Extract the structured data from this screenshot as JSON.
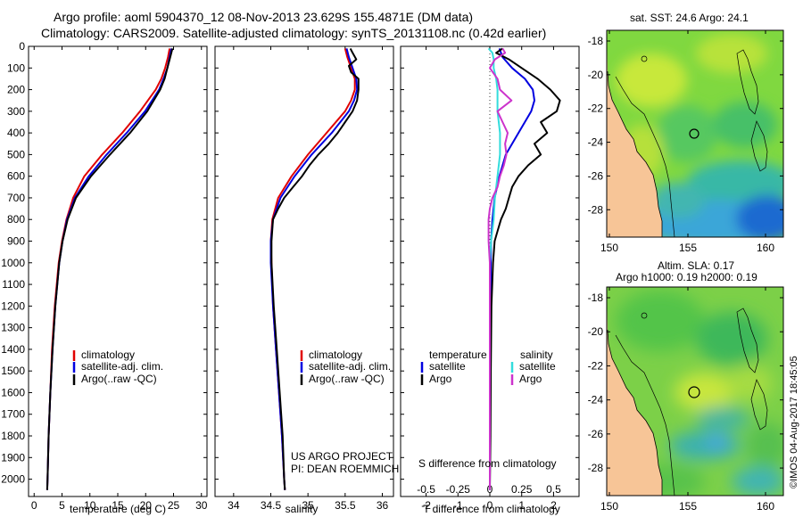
{
  "header": {
    "title_line1": "Argo profile: aoml 5904370_12 08-Nov-2013 23.629S 155.4871E (DM data)",
    "title_line2": "Climatology: CARS2009. Satellite-adjusted climatology: synTS_20131108.nc (0.42d earlier)"
  },
  "colors": {
    "climatology": "#e00000",
    "satellite": "#0000e0",
    "argo": "#000000",
    "salinity_satellite": "#33dddd",
    "salinity_argo": "#cc33cc"
  },
  "chart_data": [
    {
      "type": "line",
      "panel": "temperature",
      "xlabel": "temperature (deg C)",
      "xlim": [
        -1,
        31
      ],
      "xticks": [
        0,
        5,
        10,
        15,
        20,
        25,
        30
      ],
      "ylim": [
        0,
        2080
      ],
      "yticks": [
        0,
        100,
        200,
        300,
        400,
        500,
        600,
        700,
        800,
        900,
        1000,
        1100,
        1200,
        1300,
        1400,
        1500,
        1600,
        1700,
        1800,
        1900,
        2000
      ],
      "legend": [
        "climatology",
        "satellite-adj. clim.",
        "Argo(..raw -QC)"
      ],
      "series": [
        {
          "name": "climatology",
          "depth": [
            10,
            50,
            100,
            150,
            200,
            300,
            400,
            500,
            600,
            700,
            800,
            900,
            1000,
            1200,
            1400,
            1600,
            1800,
            2000,
            2050
          ],
          "values": [
            24.3,
            24.0,
            23.5,
            22.8,
            21.8,
            19.0,
            15.8,
            12.2,
            9.0,
            7.0,
            5.8,
            5.0,
            4.4,
            3.7,
            3.2,
            2.9,
            2.6,
            2.4,
            2.35
          ]
        },
        {
          "name": "satellite-adj. clim.",
          "depth": [
            10,
            50,
            100,
            150,
            200,
            300,
            400,
            500,
            600,
            700,
            800,
            900,
            1000,
            1200,
            1400,
            1600,
            1800,
            2000,
            2050
          ],
          "values": [
            24.6,
            24.3,
            23.9,
            23.2,
            22.4,
            19.9,
            16.6,
            13.0,
            9.8,
            7.3,
            5.9,
            5.1,
            4.5,
            3.8,
            3.3,
            2.9,
            2.6,
            2.4,
            2.35
          ]
        },
        {
          "name": "Argo(..raw -QC)",
          "depth": [
            10,
            50,
            100,
            150,
            200,
            300,
            400,
            500,
            600,
            700,
            800,
            900,
            1000,
            1200,
            1400,
            1600,
            1800,
            2000,
            2050
          ],
          "values": [
            24.8,
            24.4,
            23.9,
            23.4,
            22.6,
            20.3,
            17.2,
            13.6,
            10.2,
            7.5,
            6.0,
            5.1,
            4.5,
            3.8,
            3.3,
            2.9,
            2.6,
            2.4,
            2.35
          ]
        }
      ]
    },
    {
      "type": "line",
      "panel": "salinity",
      "xlabel": "salinity",
      "xlim": [
        33.75,
        36.15
      ],
      "xticks": [
        34,
        34.5,
        35,
        35.5,
        36
      ],
      "ylim": [
        0,
        2080
      ],
      "legend": [
        "climatology",
        "satellite-adj. clim.",
        "Argo(..raw -QC)"
      ],
      "annotation": [
        "US ARGO PROJECT",
        "PI: DEAN ROEMMICH"
      ],
      "series": [
        {
          "name": "climatology",
          "depth": [
            10,
            50,
            100,
            150,
            200,
            250,
            300,
            400,
            500,
            600,
            700,
            800,
            900,
            1000,
            1200,
            1400,
            1600,
            1800,
            2000,
            2050
          ],
          "values": [
            35.5,
            35.53,
            35.58,
            35.63,
            35.63,
            35.58,
            35.5,
            35.25,
            35.0,
            34.78,
            34.6,
            34.52,
            34.5,
            34.51,
            34.53,
            34.57,
            34.61,
            34.65,
            34.68,
            34.69
          ]
        },
        {
          "name": "satellite-adj. clim.",
          "depth": [
            10,
            50,
            100,
            150,
            200,
            250,
            300,
            400,
            500,
            600,
            700,
            800,
            900,
            1000,
            1200,
            1400,
            1600,
            1800,
            2000,
            2050
          ],
          "values": [
            35.52,
            35.55,
            35.6,
            35.65,
            35.66,
            35.62,
            35.55,
            35.32,
            35.05,
            34.82,
            34.63,
            34.53,
            34.5,
            34.5,
            34.53,
            34.57,
            34.61,
            34.65,
            34.68,
            34.69
          ]
        },
        {
          "name": "Argo(..raw -QC)",
          "depth": [
            10,
            30,
            60,
            90,
            120,
            150,
            200,
            250,
            300,
            350,
            400,
            450,
            500,
            550,
            600,
            650,
            700,
            750,
            800,
            900,
            1000,
            1200,
            1400,
            1600,
            1800,
            2000,
            2050
          ],
          "values": [
            35.57,
            35.6,
            35.65,
            35.55,
            35.58,
            35.68,
            35.68,
            35.66,
            35.6,
            35.5,
            35.4,
            35.28,
            35.14,
            35.02,
            34.92,
            34.8,
            34.68,
            34.6,
            34.53,
            34.51,
            34.51,
            34.54,
            34.58,
            34.62,
            34.66,
            34.68,
            34.69
          ]
        }
      ]
    },
    {
      "type": "line",
      "panel": "difference",
      "xlabel": "T difference from climatology",
      "top_xlabel": "S difference from climatology",
      "xlim": [
        -2.8,
        2.8
      ],
      "xticks": [
        -2,
        -1,
        0,
        1,
        2
      ],
      "sticks": [
        "-0.5",
        "-0.25",
        "0",
        "0.25",
        "0.5"
      ],
      "ylim": [
        0,
        2080
      ],
      "legend_headers": [
        "temperature",
        "salinity"
      ],
      "legend": [
        "satellite",
        "Argo",
        "satellite",
        "Argo"
      ],
      "series": [
        {
          "name": "temperature satellite",
          "depth": [
            10,
            50,
            100,
            150,
            200,
            250,
            300,
            400,
            500,
            600,
            700,
            800,
            900,
            1000,
            1200,
            1500,
            1800,
            2050
          ],
          "values": [
            0.3,
            0.4,
            0.7,
            1.1,
            1.35,
            1.4,
            1.3,
            0.9,
            0.5,
            0.3,
            0.15,
            0.08,
            0.04,
            0.03,
            0.02,
            0.01,
            0.0,
            0.0
          ]
        },
        {
          "name": "temperature Argo",
          "depth": [
            10,
            30,
            60,
            100,
            150,
            200,
            250,
            300,
            350,
            400,
            450,
            500,
            550,
            600,
            650,
            700,
            750,
            800,
            850,
            900,
            1000,
            1200,
            1500,
            1800,
            2050
          ],
          "values": [
            0.4,
            0.2,
            0.6,
            1.0,
            1.5,
            1.9,
            2.2,
            2.1,
            1.6,
            1.8,
            1.4,
            1.6,
            1.2,
            0.9,
            0.7,
            0.6,
            0.5,
            0.35,
            0.25,
            0.15,
            0.1,
            0.05,
            0.03,
            0.02,
            0.0
          ]
        },
        {
          "name": "salinity satellite",
          "depth": [
            10,
            30,
            60,
            100,
            150,
            200,
            300,
            400,
            500,
            600,
            700,
            800,
            900,
            1000,
            1200,
            1500,
            1800,
            2050
          ],
          "values": [
            -0.01,
            0.02,
            0.03,
            0.03,
            0.05,
            0.06,
            0.06,
            0.08,
            0.08,
            0.06,
            0.04,
            0.03,
            0.01,
            0.0,
            0.0,
            0.0,
            0.0,
            0.0
          ]
        },
        {
          "name": "salinity Argo",
          "depth": [
            10,
            30,
            60,
            100,
            150,
            200,
            250,
            300,
            350,
            400,
            450,
            500,
            550,
            600,
            650,
            700,
            750,
            800,
            900,
            1000,
            1100,
            1200,
            1500,
            2050
          ],
          "values": [
            0.1,
            0.12,
            0.04,
            0.0,
            0.06,
            0.08,
            0.17,
            0.06,
            0.1,
            0.14,
            0.12,
            0.13,
            0.11,
            0.08,
            0.06,
            0.02,
            0.0,
            -0.01,
            -0.01,
            0.0,
            0.0,
            0.0,
            0.0,
            0.0
          ]
        }
      ]
    }
  ],
  "maps": {
    "sst": {
      "title": "sat. SST: 24.6  Argo: 24.1",
      "lat_ticks": [
        "-18",
        "-20",
        "-22",
        "-24",
        "-26",
        "-28"
      ],
      "lon_ticks": [
        "150",
        "155",
        "160"
      ]
    },
    "sla": {
      "title_line1": "Altim. SLA: 0.17",
      "title_line2": "Argo h1000: 0.19  h2000: 0.19",
      "lat_ticks": [
        "-18",
        "-20",
        "-22",
        "-24",
        "-26",
        "-28"
      ],
      "lon_ticks": [
        "150",
        "155",
        "160"
      ]
    }
  },
  "watermark": "©IMOS 04-Aug-2017 18:45:05"
}
